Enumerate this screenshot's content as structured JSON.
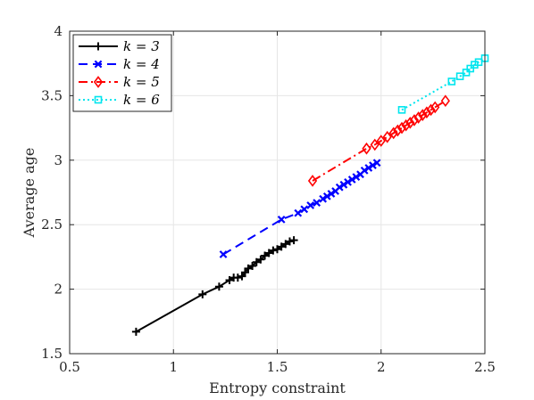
{
  "chart_data": {
    "type": "line",
    "xlabel": "Entropy constraint",
    "ylabel": "Average age",
    "xlim": [
      0.5,
      2.5
    ],
    "ylim": [
      1.5,
      4
    ],
    "xticks": [
      "0.5",
      "1",
      "1.5",
      "2",
      "2.5"
    ],
    "yticks": [
      "1.5",
      "2",
      "2.5",
      "3",
      "3.5",
      "4"
    ],
    "grid": true,
    "legend_position": "top-left",
    "series": [
      {
        "name": "k = 3",
        "color": "#000000",
        "dash": "",
        "marker": "plus",
        "x": [
          0.82,
          1.14,
          1.22,
          1.27,
          1.29,
          1.31,
          1.33,
          1.345,
          1.36,
          1.38,
          1.4,
          1.42,
          1.44,
          1.46,
          1.48,
          1.5,
          1.52,
          1.54,
          1.56,
          1.58
        ],
        "y": [
          1.67,
          1.96,
          2.02,
          2.07,
          2.09,
          2.09,
          2.1,
          2.13,
          2.16,
          2.18,
          2.21,
          2.23,
          2.26,
          2.28,
          2.3,
          2.31,
          2.33,
          2.35,
          2.37,
          2.38
        ]
      },
      {
        "name": "k = 4",
        "color": "#0000ff",
        "dash": "10,6",
        "marker": "x",
        "x": [
          1.24,
          1.52,
          1.6,
          1.63,
          1.66,
          1.69,
          1.72,
          1.74,
          1.76,
          1.78,
          1.8,
          1.82,
          1.84,
          1.86,
          1.88,
          1.9,
          1.92,
          1.94,
          1.96,
          1.98
        ],
        "y": [
          2.27,
          2.54,
          2.59,
          2.62,
          2.65,
          2.67,
          2.7,
          2.72,
          2.74,
          2.76,
          2.79,
          2.81,
          2.83,
          2.85,
          2.87,
          2.89,
          2.92,
          2.94,
          2.96,
          2.98
        ]
      },
      {
        "name": "k = 5",
        "color": "#ff0000",
        "dash": "10,4,2,4",
        "marker": "diamond",
        "x": [
          1.67,
          1.93,
          1.97,
          2.0,
          2.03,
          2.06,
          2.08,
          2.1,
          2.12,
          2.14,
          2.16,
          2.18,
          2.2,
          2.22,
          2.24,
          2.26,
          2.31
        ],
        "y": [
          2.84,
          3.09,
          3.12,
          3.15,
          3.18,
          3.21,
          3.23,
          3.25,
          3.27,
          3.29,
          3.31,
          3.33,
          3.35,
          3.37,
          3.39,
          3.41,
          3.46
        ]
      },
      {
        "name": "k = 6",
        "color": "#00e5ee",
        "dash": "2,3",
        "marker": "square",
        "x": [
          2.1,
          2.34,
          2.38,
          2.41,
          2.43,
          2.45,
          2.47,
          2.5
        ],
        "y": [
          3.39,
          3.61,
          3.65,
          3.68,
          3.71,
          3.74,
          3.76,
          3.79
        ]
      }
    ]
  }
}
